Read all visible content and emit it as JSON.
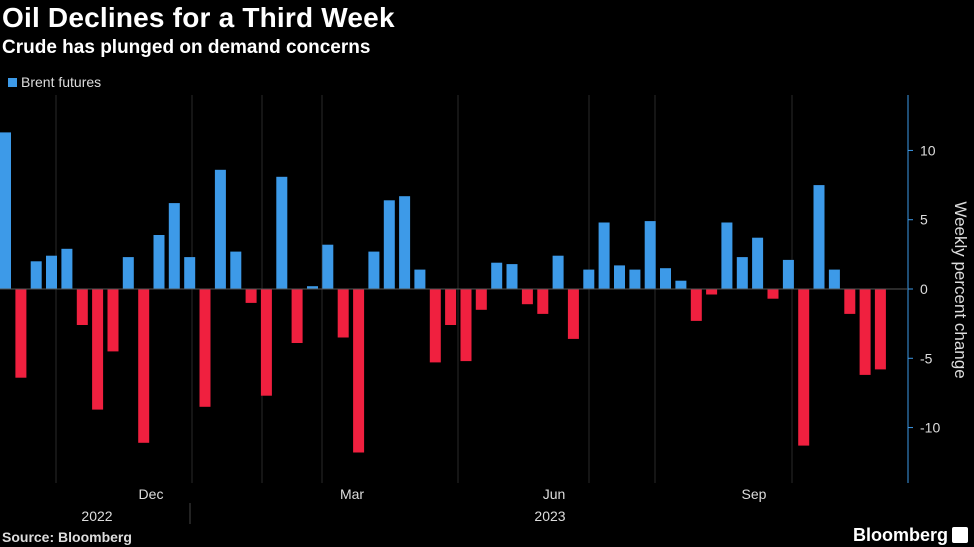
{
  "colors": {
    "positive": "#3d9ae8",
    "negative": "#f0203f",
    "grid": "#2a2a2a",
    "axis": "#3d9ae8"
  },
  "chart_data": {
    "type": "bar",
    "title": "Oil Declines for a Third Week",
    "subtitle": "Crude has plunged on demand concerns",
    "legend": [
      "Brent futures"
    ],
    "ylabel": "Weekly percent change",
    "ylim": [
      -14,
      14
    ],
    "yticks": [
      -10,
      -5,
      0,
      5,
      10
    ],
    "ytick_labels": [
      "-10",
      "-5",
      "0",
      "5",
      "10"
    ],
    "x_month_labels": [
      "Dec",
      "Mar",
      "Jun",
      "Sep"
    ],
    "x_year_labels": [
      "2022",
      "2023"
    ],
    "series": [
      {
        "name": "Brent futures",
        "values": [
          11.3,
          -6.4,
          2.0,
          2.4,
          2.9,
          -2.6,
          -8.7,
          -4.5,
          2.3,
          -11.1,
          3.9,
          6.2,
          2.3,
          -8.5,
          8.6,
          2.7,
          -1.0,
          -7.7,
          8.1,
          -3.9,
          0.2,
          3.2,
          -3.5,
          -11.8,
          2.7,
          6.4,
          6.7,
          1.4,
          -5.3,
          -2.6,
          -5.2,
          -1.5,
          1.9,
          1.8,
          -1.1,
          -1.8,
          2.4,
          -3.6,
          1.4,
          4.8,
          1.7,
          1.4,
          4.9,
          1.5,
          0.6,
          -2.3,
          -0.4,
          4.8,
          2.3,
          3.7,
          -0.7,
          2.1,
          -11.3,
          7.5,
          1.4,
          -1.8,
          -6.2,
          -5.8
        ]
      }
    ]
  },
  "footer": {
    "source": "Source: Bloomberg",
    "brand": "Bloomberg"
  }
}
